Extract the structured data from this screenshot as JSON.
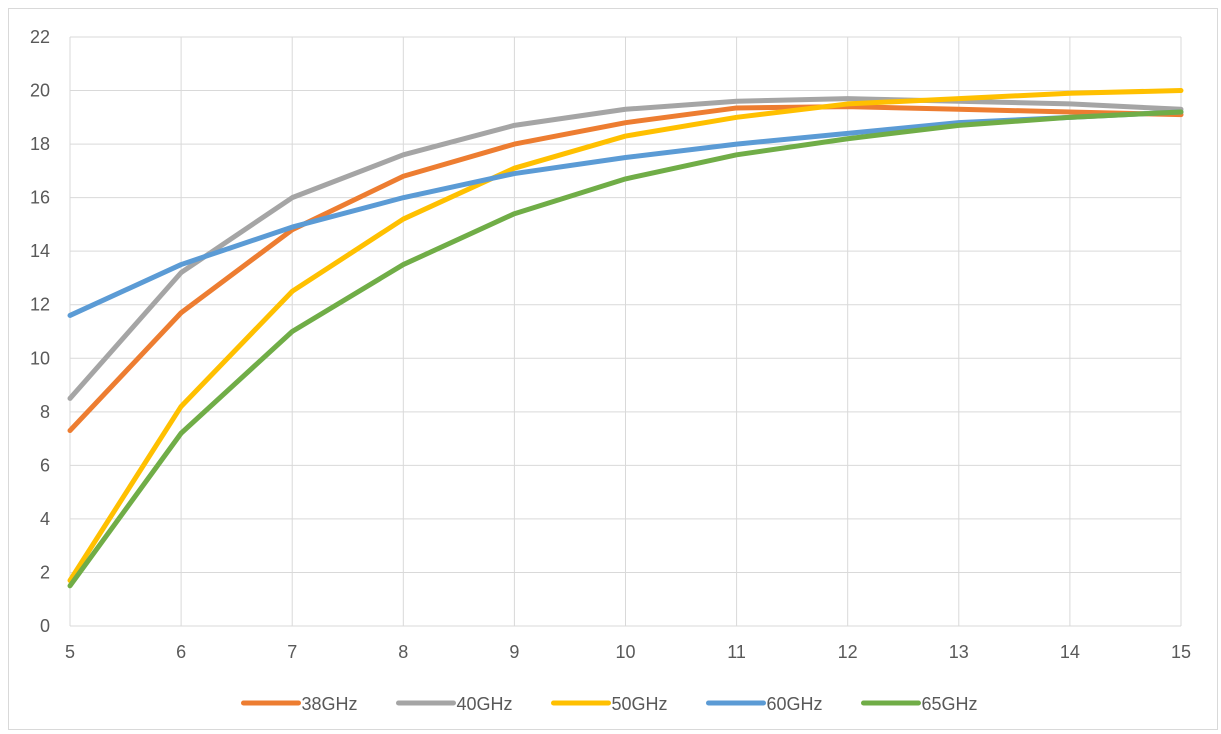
{
  "chart_data": {
    "type": "line",
    "x": [
      5,
      6,
      7,
      8,
      9,
      10,
      11,
      12,
      13,
      14,
      15
    ],
    "xlim": [
      5,
      15
    ],
    "ylim": [
      0,
      22
    ],
    "x_ticks": [
      "5",
      "6",
      "7",
      "8",
      "9",
      "10",
      "11",
      "12",
      "13",
      "14",
      "15"
    ],
    "y_ticks": [
      "0",
      "2",
      "4",
      "6",
      "8",
      "10",
      "12",
      "14",
      "16",
      "18",
      "20",
      "22"
    ],
    "grid": "horizontal and vertical",
    "legend_position": "bottom",
    "series": [
      {
        "name": "38GHz",
        "color": "#ED7D31",
        "values": [
          7.3,
          11.7,
          14.8,
          16.8,
          18.0,
          18.8,
          19.35,
          19.4,
          19.3,
          19.2,
          19.1
        ]
      },
      {
        "name": "40GHz",
        "color": "#A5A5A5",
        "values": [
          8.5,
          13.2,
          16.0,
          17.6,
          18.7,
          19.3,
          19.6,
          19.7,
          19.6,
          19.5,
          19.3
        ]
      },
      {
        "name": "50GHz",
        "color": "#FFC000",
        "values": [
          1.7,
          8.2,
          12.5,
          15.2,
          17.1,
          18.3,
          19.0,
          19.5,
          19.7,
          19.9,
          20.0
        ]
      },
      {
        "name": "60GHz",
        "color": "#5B9BD5",
        "values": [
          11.6,
          13.5,
          14.9,
          16.0,
          16.9,
          17.5,
          18.0,
          18.4,
          18.8,
          19.0,
          19.2
        ]
      },
      {
        "name": "65GHz",
        "color": "#70AD47",
        "values": [
          1.5,
          7.2,
          11.0,
          13.5,
          15.4,
          16.7,
          17.6,
          18.2,
          18.7,
          19.0,
          19.2
        ]
      }
    ]
  }
}
